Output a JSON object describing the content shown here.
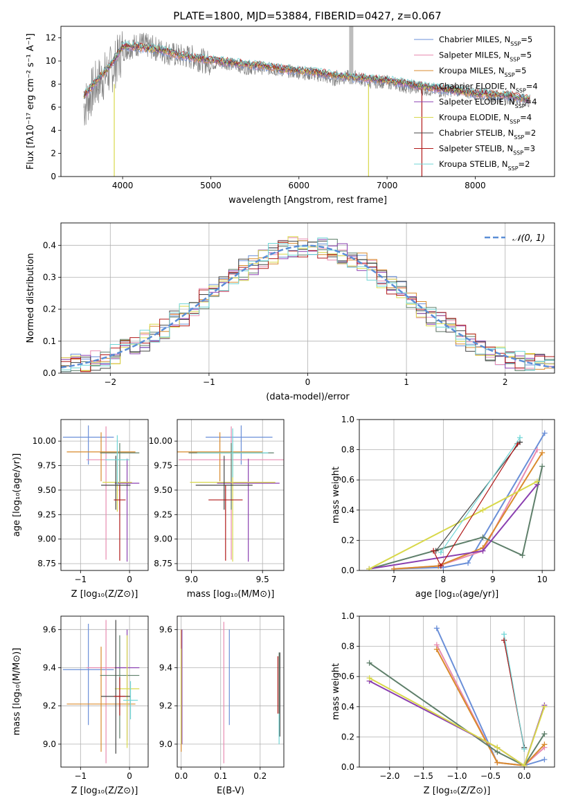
{
  "figure": {
    "title": "PLATE=1800, MJD=53884, FIBERID=0427, z=0.067"
  },
  "colors": {
    "series": [
      "#6a8fd8",
      "#e88bb0",
      "#d98a2c",
      "#5e7f6a",
      "#8a3fb0",
      "#d8d84a",
      "#444444",
      "#b01818",
      "#6fd6d6"
    ],
    "spectrum_data": "#808080",
    "normal": "#5b8ed6",
    "grid": "#b0b0b0"
  },
  "legend_spectrum": [
    {
      "name": "Chabrier MILES",
      "nssp": "5"
    },
    {
      "name": "Salpeter MILES",
      "nssp": "5"
    },
    {
      "name": "Kroupa MILES",
      "nssp": "5"
    },
    {
      "name": "Chabrier ELODIE",
      "nssp": "4"
    },
    {
      "name": "Salpeter ELODIE",
      "nssp": "4"
    },
    {
      "name": "Kroupa ELODIE",
      "nssp": "4"
    },
    {
      "name": "Chabrier STELIB",
      "nssp": "2"
    },
    {
      "name": "Salpeter STELIB",
      "nssp": "3"
    },
    {
      "name": "Kroupa STELIB",
      "nssp": "2"
    }
  ],
  "chart_data": [
    {
      "id": "spectrum",
      "type": "line",
      "xlabel": "wavelength [Angstrom, rest frame]",
      "ylabel": "Flux [fλ10⁻¹⁷ erg cm⁻² s⁻¹ A⁻¹]",
      "xlim": [
        3300,
        8900
      ],
      "ylim": [
        0,
        13
      ],
      "xticks": [
        4000,
        5000,
        6000,
        7000,
        8000
      ],
      "yticks": [
        0,
        2,
        4,
        6,
        8,
        10,
        12
      ],
      "grid": false,
      "legend": "right",
      "x": [
        3560,
        3700,
        3900,
        4000,
        4200,
        4400,
        4600,
        4800,
        5000,
        5200,
        5400,
        5600,
        5800,
        6000,
        6200,
        6400,
        6600,
        6800,
        7000,
        7200,
        7400,
        7600,
        7800,
        8000,
        8200,
        8400,
        8600
      ],
      "series": [
        {
          "name": "model",
          "values": [
            7.0,
            8.2,
            10.0,
            11.3,
            11.2,
            11.0,
            10.6,
            10.3,
            10.1,
            9.9,
            9.7,
            9.6,
            9.3,
            9.2,
            9.0,
            8.8,
            8.6,
            8.5,
            8.3,
            8.1,
            7.8,
            7.6,
            7.4,
            7.2,
            7.1,
            7.0,
            6.7
          ]
        },
        {
          "name": "data",
          "values": [
            6.0,
            8.0,
            9.5,
            11.0,
            11.5,
            11.0,
            10.5,
            10.3,
            9.8,
            9.8,
            9.4,
            9.4,
            9.2,
            9.0,
            8.8,
            8.4,
            8.7,
            8.2,
            8.2,
            7.8,
            7.6,
            7.4,
            7.5,
            7.2,
            7.0,
            6.8,
            6.5
          ]
        }
      ]
    },
    {
      "id": "residuals",
      "type": "line",
      "xlabel": "(data-model)/error",
      "ylabel": "Normed distribution",
      "xlim": [
        -2.5,
        2.5
      ],
      "ylim": [
        0,
        0.47
      ],
      "xticks": [
        -2,
        -1,
        0,
        1,
        2
      ],
      "yticks": [
        0.0,
        0.1,
        0.2,
        0.3,
        0.4
      ],
      "grid": true,
      "legend": "top-right",
      "series": [
        {
          "name": "𝒩(0, 1)",
          "type": "normal",
          "mu": 0,
          "sigma": 1
        }
      ]
    },
    {
      "id": "age-vs-Z",
      "type": "scatter",
      "xlabel": "Z [log₁₀(Z/Z⊙)]",
      "ylabel": "age  [log₁₀(age/yr)]",
      "xlim": [
        -1.4,
        0.38
      ],
      "ylim": [
        8.68,
        10.22
      ],
      "xticks": [
        -1,
        0
      ],
      "yticks": [
        8.75,
        9.0,
        9.25,
        9.5,
        9.75,
        10.0
      ],
      "ytick_labels": [
        "8.75",
        "9.00",
        "9.25",
        "9.50",
        "9.75",
        "10.00"
      ],
      "grid": true,
      "points": [
        {
          "x": -0.84,
          "y": 10.04,
          "xerr": [
            0.52,
            0.52
          ],
          "yerr": [
            0.28,
            0.12
          ]
        },
        {
          "x": -0.48,
          "y": 9.81,
          "xerr": [
            0.4,
            0.4
          ],
          "yerr": [
            1.02,
            0.34
          ]
        },
        {
          "x": -0.58,
          "y": 9.89,
          "xerr": [
            0.7,
            0.7
          ],
          "yerr": [
            0.3,
            0.2
          ]
        },
        {
          "x": -0.2,
          "y": 9.88,
          "xerr": [
            0.4,
            0.4
          ],
          "yerr": [
            0.58,
            0.1
          ]
        },
        {
          "x": -0.05,
          "y": 9.57,
          "xerr": [
            0.25,
            0.25
          ],
          "yerr": [
            0.8,
            0.25
          ]
        },
        {
          "x": -0.25,
          "y": 9.58,
          "xerr": [
            0.3,
            0.3
          ],
          "yerr": [
            0.3,
            0.3
          ]
        },
        {
          "x": -0.28,
          "y": 9.55,
          "xerr": [
            0.3,
            0.3
          ],
          "yerr": [
            0.25,
            0.3
          ]
        },
        {
          "x": -0.2,
          "y": 9.4,
          "xerr": [
            0.12,
            0.12
          ],
          "yerr": [
            0.62,
            0.15
          ]
        },
        {
          "x": -0.25,
          "y": 9.81,
          "xerr": [
            0.25,
            0.25
          ],
          "yerr": [
            0.25,
            0.25
          ]
        }
      ]
    },
    {
      "id": "age-vs-mass",
      "type": "scatter",
      "xlabel": "mass [log₁₀(M/M⊙)]",
      "ylabel": "",
      "xlim": [
        8.9,
        9.65
      ],
      "ylim": [
        8.68,
        10.22
      ],
      "xticks": [
        9.0,
        9.5
      ],
      "xtick_labels": [
        "9.0",
        "9.5"
      ],
      "yticks": [
        8.75,
        9.0,
        9.25,
        9.5,
        9.75,
        10.0
      ],
      "ytick_labels": [
        "8.75",
        "9.00",
        "9.25",
        "9.50",
        "9.75",
        "10.00"
      ],
      "grid": true,
      "points": [
        {
          "x": 9.35,
          "y": 10.04,
          "xerr": [
            0.25,
            0.22
          ],
          "yerr": [
            0.28,
            0.12
          ]
        },
        {
          "x": 9.28,
          "y": 9.81,
          "xerr": [
            0.37,
            0.37
          ],
          "yerr": [
            1.02,
            0.34
          ]
        },
        {
          "x": 9.2,
          "y": 9.89,
          "xerr": [
            0.3,
            0.3
          ],
          "yerr": [
            0.3,
            0.2
          ]
        },
        {
          "x": 9.28,
          "y": 9.88,
          "xerr": [
            0.3,
            0.3
          ],
          "yerr": [
            0.58,
            0.1
          ]
        },
        {
          "x": 9.4,
          "y": 9.57,
          "xerr": [
            0.22,
            0.22
          ],
          "yerr": [
            0.8,
            0.25
          ]
        },
        {
          "x": 9.29,
          "y": 9.58,
          "xerr": [
            0.3,
            0.3
          ],
          "yerr": [
            0.81,
            0.3
          ]
        },
        {
          "x": 9.23,
          "y": 9.55,
          "xerr": [
            0.2,
            0.2
          ],
          "yerr": [
            0.25,
            0.3
          ]
        },
        {
          "x": 9.24,
          "y": 9.4,
          "xerr": [
            0.12,
            0.12
          ],
          "yerr": [
            0.62,
            0.15
          ]
        },
        {
          "x": 9.29,
          "y": 9.88,
          "xerr": [
            0.25,
            0.25
          ],
          "yerr": [
            0.25,
            0.25
          ]
        }
      ]
    },
    {
      "id": "weight-vs-age",
      "type": "line",
      "xlabel": "age  [log₁₀(age/yr)]",
      "ylabel": "mass weight",
      "xlim": [
        6.3,
        10.25
      ],
      "ylim": [
        0,
        1.0
      ],
      "xticks": [
        7,
        8,
        9,
        10
      ],
      "yticks": [
        0.0,
        0.2,
        0.4,
        0.6,
        0.8,
        1.0
      ],
      "grid": true,
      "series": [
        {
          "x": [
            7.0,
            8.0,
            8.5,
            10.05
          ],
          "values": [
            0.01,
            0.02,
            0.05,
            0.91
          ]
        },
        {
          "x": [
            7.0,
            7.9,
            8.8,
            9.9
          ],
          "values": [
            0.01,
            0.03,
            0.13,
            0.8
          ]
        },
        {
          "x": [
            7.0,
            7.9,
            8.8,
            10.0
          ],
          "values": [
            0.01,
            0.03,
            0.15,
            0.78
          ]
        },
        {
          "x": [
            6.5,
            8.8,
            9.6,
            10.0
          ],
          "values": [
            0.01,
            0.22,
            0.1,
            0.69
          ]
        },
        {
          "x": [
            6.5,
            8.8,
            9.9
          ],
          "values": [
            0.01,
            0.13,
            0.57
          ]
        },
        {
          "x": [
            6.5,
            8.8,
            9.9
          ],
          "values": [
            0.01,
            0.4,
            0.59
          ]
        },
        {
          "x": [
            7.85,
            9.55
          ],
          "values": [
            0.13,
            0.85
          ]
        },
        {
          "x": [
            7.8,
            7.95,
            9.5
          ],
          "values": [
            0.13,
            0.03,
            0.84
          ]
        },
        {
          "x": [
            7.95,
            9.55
          ],
          "values": [
            0.12,
            0.88
          ]
        }
      ]
    },
    {
      "id": "mass-vs-Z",
      "type": "scatter",
      "xlabel": "Z [log₁₀(Z/Z⊙)]",
      "ylabel": "mass [log₁₀(M/M⊙)]",
      "xlim": [
        -1.4,
        0.38
      ],
      "ylim": [
        8.88,
        9.67
      ],
      "xticks": [
        -1,
        0
      ],
      "yticks": [
        9.0,
        9.2,
        9.4,
        9.6
      ],
      "ytick_labels": [
        "9.0",
        "9.2",
        "9.4",
        "9.6"
      ],
      "grid": true,
      "points": [
        {
          "x": -0.84,
          "y": 9.39,
          "xerr": [
            0.52,
            0.52
          ],
          "yerr": [
            0.29,
            0.24
          ]
        },
        {
          "x": -0.48,
          "y": 9.4,
          "xerr": [
            0.4,
            0.4
          ],
          "yerr": [
            0.5,
            0.25
          ]
        },
        {
          "x": -0.58,
          "y": 9.21,
          "xerr": [
            0.7,
            0.7
          ],
          "yerr": [
            0.25,
            0.3
          ]
        },
        {
          "x": -0.2,
          "y": 9.36,
          "xerr": [
            0.4,
            0.4
          ],
          "yerr": [
            0.33,
            0.21
          ]
        },
        {
          "x": -0.05,
          "y": 9.4,
          "xerr": [
            0.25,
            0.25
          ],
          "yerr": [
            0.38,
            0.2
          ]
        },
        {
          "x": -0.05,
          "y": 9.29,
          "xerr": [
            0.25,
            0.25
          ],
          "yerr": [
            0.31,
            0.28
          ]
        },
        {
          "x": -0.28,
          "y": 9.25,
          "xerr": [
            0.3,
            0.3
          ],
          "yerr": [
            0.3,
            0.4
          ]
        },
        {
          "x": -0.2,
          "y": 9.25,
          "xerr": [
            0.12,
            0.12
          ],
          "yerr": [
            0.1,
            0.1
          ]
        },
        {
          "x": 0.02,
          "y": 9.23,
          "xerr": [
            0.15,
            0.15
          ],
          "yerr": [
            0.1,
            0.1
          ]
        }
      ]
    },
    {
      "id": "mass-vs-ebv",
      "type": "scatter",
      "xlabel": "E(B-V)",
      "ylabel": "",
      "xlim": [
        -0.01,
        0.26
      ],
      "ylim": [
        8.88,
        9.67
      ],
      "xticks": [
        0.0,
        0.1,
        0.2
      ],
      "xtick_labels": [
        "0.0",
        "0.1",
        "0.2"
      ],
      "yticks": [
        9.0,
        9.2,
        9.4,
        9.6
      ],
      "ytick_labels": [
        "9.0",
        "9.2",
        "9.4",
        "9.6"
      ],
      "grid": true,
      "points": [
        {
          "x": 0.122,
          "y": 9.35,
          "xerr": [
            0,
            0
          ],
          "yerr": [
            0.25,
            0.25
          ]
        },
        {
          "x": 0.108,
          "y": 9.27,
          "xerr": [
            0,
            0
          ],
          "yerr": [
            0.37,
            0.37
          ]
        },
        {
          "x": 0.0,
          "y": 9.28,
          "xerr": [
            0,
            0
          ],
          "yerr": [
            0.32,
            0.32
          ]
        },
        {
          "x": 0.248,
          "y": 9.26,
          "xerr": [
            0,
            0
          ],
          "yerr": [
            0.22,
            0.22
          ]
        },
        {
          "x": 0.002,
          "y": 9.3,
          "xerr": [
            0,
            0
          ],
          "yerr": [
            0.3,
            0.3
          ]
        },
        {
          "x": 0.0,
          "y": 9.25,
          "xerr": [
            0,
            0
          ],
          "yerr": [
            0.25,
            0.25
          ]
        },
        {
          "x": 0.25,
          "y": 9.26,
          "xerr": [
            0,
            0
          ],
          "yerr": [
            0.22,
            0.22
          ]
        },
        {
          "x": 0.245,
          "y": 9.31,
          "xerr": [
            0,
            0
          ],
          "yerr": [
            0.15,
            0.15
          ]
        },
        {
          "x": 0.248,
          "y": 9.08,
          "xerr": [
            0,
            0
          ],
          "yerr": [
            0.08,
            0.08
          ]
        }
      ]
    },
    {
      "id": "weight-vs-Z",
      "type": "line",
      "xlabel": "Z [log₁₀(Z/Z⊙)]",
      "ylabel": "mass weight",
      "xlim": [
        -2.45,
        0.45
      ],
      "ylim": [
        0,
        1.0
      ],
      "xticks": [
        -2.0,
        -1.5,
        -1.0,
        -0.5,
        0.0
      ],
      "xtick_labels": [
        "−2.0",
        "−1.5",
        "−1.0",
        "−0.5",
        "0.0"
      ],
      "yticks": [
        0.0,
        0.2,
        0.4,
        0.6,
        0.8,
        1.0
      ],
      "grid": true,
      "series": [
        {
          "x": [
            -1.3,
            -0.4,
            0.0,
            0.3
          ],
          "values": [
            0.92,
            0.03,
            0.01,
            0.05
          ]
        },
        {
          "x": [
            -1.3,
            -0.4,
            0.0,
            0.3
          ],
          "values": [
            0.81,
            0.03,
            0.01,
            0.13
          ]
        },
        {
          "x": [
            -1.3,
            -0.4,
            0.0,
            0.3
          ],
          "values": [
            0.78,
            0.03,
            0.01,
            0.15
          ]
        },
        {
          "x": [
            -2.3,
            -0.4,
            0.0,
            0.3
          ],
          "values": [
            0.69,
            0.1,
            0.01,
            0.22
          ]
        },
        {
          "x": [
            -2.3,
            -0.4,
            0.0,
            0.3
          ],
          "values": [
            0.57,
            0.13,
            0.01,
            0.41
          ]
        },
        {
          "x": [
            -2.3,
            -0.4,
            0.0,
            0.3
          ],
          "values": [
            0.59,
            0.13,
            0.01,
            0.4
          ]
        },
        {
          "x": [
            -0.3,
            0.0
          ],
          "values": [
            0.84,
            0.13
          ]
        },
        {
          "x": [
            -0.3,
            0.0
          ],
          "values": [
            0.84,
            0.12
          ]
        },
        {
          "x": [
            -0.3,
            0.0
          ],
          "values": [
            0.88,
            0.12
          ]
        }
      ]
    }
  ]
}
